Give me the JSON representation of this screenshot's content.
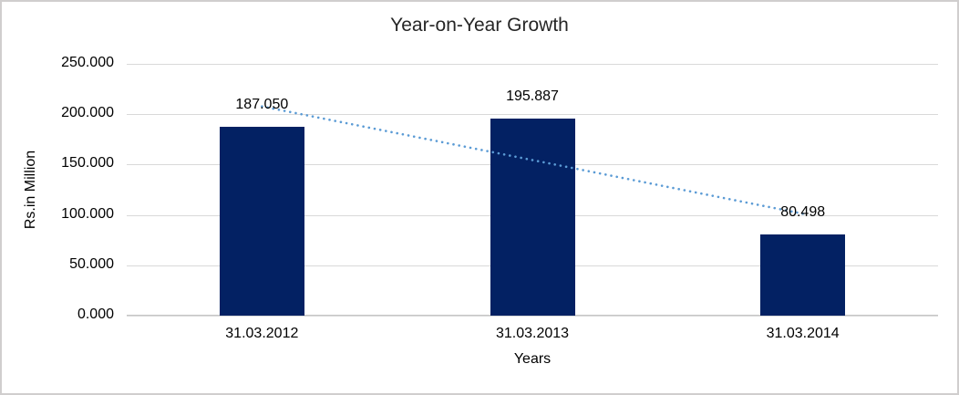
{
  "chart_data": {
    "type": "bar",
    "title": "Year-on-Year Growth",
    "xlabel": "Years",
    "ylabel": "Rs.in Million",
    "categories": [
      "31.03.2012",
      "31.03.2013",
      "31.03.2014"
    ],
    "values": [
      187.05,
      195.887,
      80.498
    ],
    "data_labels": [
      "187.050",
      "195.887",
      "80.498"
    ],
    "ylim": [
      0,
      250
    ],
    "yticks": [
      {
        "value": 0,
        "label": "0.000"
      },
      {
        "value": 50,
        "label": "50.000"
      },
      {
        "value": 100,
        "label": "100.000"
      },
      {
        "value": 150,
        "label": "150.000"
      },
      {
        "value": 200,
        "label": "200.000"
      },
      {
        "value": 250,
        "label": "250.000"
      }
    ],
    "grid": "horizontal",
    "legend": "none",
    "trendline": {
      "type": "linear",
      "style": "dotted",
      "start_value": 207.75,
      "end_value": 101.2
    },
    "colors": {
      "bar": "#032163",
      "trendline": "#5b9bd5",
      "gridline": "#d9d9d9",
      "axis_line": "#c6c6c6",
      "frame": "#d0cece",
      "text": "#000000",
      "title_text": "#262626"
    }
  }
}
